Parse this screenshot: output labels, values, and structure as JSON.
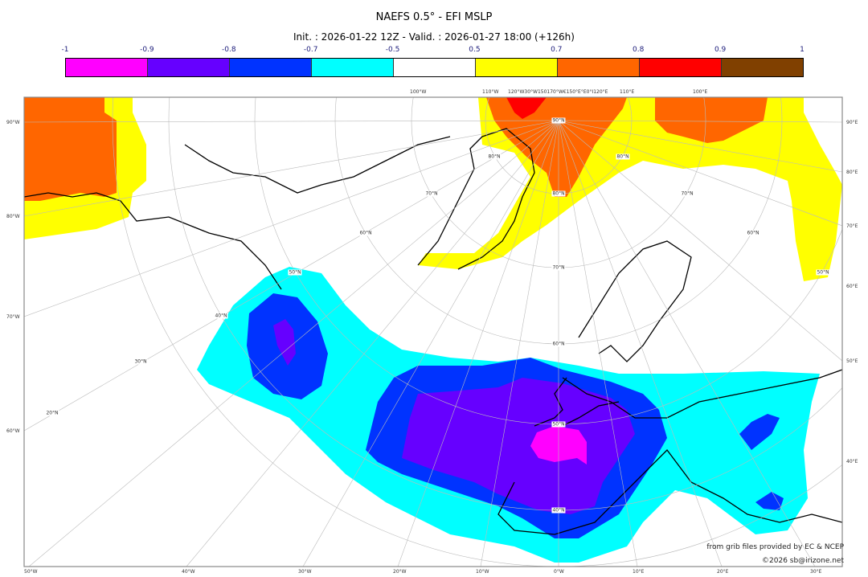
{
  "header": {
    "title": "NAEFS 0.5° - EFI MSLP",
    "subtitle": "Init. : 2026-01-22 12Z - Valid. : 2026-01-27 18:00 (+126h)"
  },
  "colorbar": {
    "ticks": [
      "-1",
      "-0.9",
      "-0.8",
      "-0.7",
      "-0.5",
      "0.5",
      "0.7",
      "0.8",
      "0.9",
      "1"
    ],
    "colors": [
      "#ff00ff",
      "#6600ff",
      "#0033ff",
      "#00ffff",
      "#ffffff",
      "#ffff00",
      "#ff6600",
      "#ff0000",
      "#804000"
    ]
  },
  "map": {
    "left_labels": [
      "90°W",
      "80°W",
      "70°W",
      "60°W"
    ],
    "right_labels": [
      "90°E",
      "80°E",
      "70°E",
      "60°E",
      "50°E",
      "40°E"
    ],
    "bottom_labels": [
      "50°W",
      "40°W",
      "30°W",
      "20°W",
      "10°W",
      "0°W",
      "10°E",
      "20°E",
      "30°E"
    ],
    "top_labels": [
      "100°W",
      "110°W",
      "120°W30°W150170°W€150°E°E0°I120°E",
      "110°E",
      "100°E"
    ],
    "lat_labels": [
      "90°N",
      "80°N",
      "80°N",
      "80°N",
      "70°N",
      "70°N",
      "70°N",
      "60°N",
      "60°N",
      "60°N",
      "50°N",
      "50°N",
      "50°N",
      "40°N",
      "40°N",
      "30°N",
      "20°N"
    ]
  },
  "credits": {
    "source": "from grib files provided by EC & NCEP",
    "copyright": "©2026 sb@irizone.net"
  }
}
